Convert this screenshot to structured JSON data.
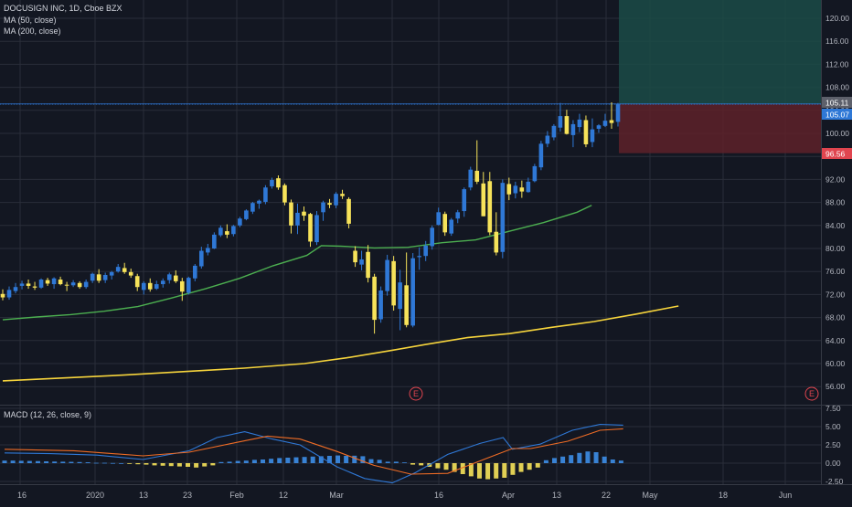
{
  "header": {
    "symbol_line": "DOCUSIGN INC, 1D, Cboe BZX",
    "ma50_label": "MA (50, close)",
    "ma200_label": "MA (200, close)",
    "macd_label": "MACD (12, 26, close, 9)"
  },
  "colors": {
    "background": "#131722",
    "grid": "#2a2e39",
    "bull": "#2f78d6",
    "bear": "#f7e35a",
    "ma50": "#4caf50",
    "ma200": "#f6d43c",
    "macd_line": "#2f78d6",
    "signal_line": "#ef6c25",
    "profit_zone": "#1b4b47",
    "loss_zone": "#5e2129",
    "price_line": "#2f78d6"
  },
  "chart_data": {
    "type": "candlestick",
    "price_axis": {
      "ticks": [
        "120.00",
        "116.00",
        "112.00",
        "108.00",
        "104.00",
        "100.00",
        "96.00",
        "92.00",
        "88.00",
        "84.00",
        "80.00",
        "76.00",
        "72.00",
        "68.00",
        "64.00",
        "60.00",
        "56.00"
      ]
    },
    "macd_axis": {
      "ticks": [
        "7.50",
        "5.00",
        "2.50",
        "0.00",
        "-2.50"
      ]
    },
    "x_axis": {
      "labels": [
        "16",
        "2020",
        "13",
        "23",
        "Feb",
        "12",
        "Mar",
        "16",
        "Apr",
        "13",
        "22",
        "May",
        "18",
        "Jun"
      ]
    },
    "price_labels": [
      {
        "text": "105.11",
        "kind": "gray"
      },
      {
        "text": "105.07",
        "kind": "blue"
      },
      {
        "text": "96.56",
        "kind": "red"
      }
    ],
    "position": {
      "entry": 105.11,
      "stop": 96.56,
      "target": 121
    },
    "earnings_markers": [
      "E",
      "E"
    ],
    "anchors": {
      "p100": 100,
      "y100": 146,
      "p60": 60,
      "y60": 398,
      "m5": 5,
      "my5": 467,
      "m0": 0,
      "my0": 507,
      "c0x": 3,
      "dx": 6.6
    },
    "candles_ohlc": [
      [
        72.1,
        72.9,
        71.0,
        71.5
      ],
      [
        71.5,
        73.4,
        71.1,
        72.8
      ],
      [
        72.6,
        74.0,
        72.2,
        73.3
      ],
      [
        73.5,
        74.4,
        72.9,
        73.9
      ],
      [
        73.9,
        74.6,
        73.0,
        73.5
      ],
      [
        73.4,
        74.2,
        72.8,
        73.2
      ],
      [
        73.2,
        74.8,
        73.0,
        74.6
      ],
      [
        74.5,
        74.9,
        73.5,
        73.9
      ],
      [
        73.8,
        75.0,
        73.0,
        74.8
      ],
      [
        74.6,
        75.1,
        73.6,
        73.8
      ],
      [
        73.7,
        74.2,
        72.6,
        73.6
      ],
      [
        73.6,
        74.5,
        73.3,
        74.1
      ],
      [
        74.0,
        74.3,
        73.0,
        73.3
      ],
      [
        73.3,
        74.6,
        73.0,
        74.2
      ],
      [
        74.4,
        75.8,
        74.0,
        75.6
      ],
      [
        75.5,
        76.4,
        74.0,
        74.4
      ],
      [
        74.5,
        75.8,
        74.0,
        75.4
      ],
      [
        75.3,
        76.1,
        74.6,
        75.9
      ],
      [
        76.0,
        77.3,
        75.8,
        76.8
      ],
      [
        76.6,
        77.5,
        75.6,
        75.9
      ],
      [
        75.9,
        76.5,
        74.9,
        75.3
      ],
      [
        75.2,
        75.6,
        72.6,
        73.3
      ],
      [
        72.8,
        74.3,
        72.0,
        74.0
      ],
      [
        74.0,
        74.8,
        72.5,
        72.9
      ],
      [
        73.0,
        74.4,
        72.8,
        73.8
      ],
      [
        73.8,
        74.8,
        73.2,
        74.4
      ],
      [
        74.5,
        75.8,
        73.9,
        75.5
      ],
      [
        75.3,
        76.2,
        74.0,
        74.3
      ],
      [
        74.3,
        74.9,
        70.9,
        72.5
      ],
      [
        72.3,
        75.1,
        72.0,
        74.9
      ],
      [
        74.8,
        77.3,
        74.3,
        77.0
      ],
      [
        76.9,
        80.3,
        76.5,
        79.6
      ],
      [
        79.3,
        80.8,
        78.8,
        80.1
      ],
      [
        80.0,
        82.8,
        79.9,
        82.4
      ],
      [
        82.3,
        84.0,
        82.0,
        83.6
      ],
      [
        83.0,
        84.2,
        81.8,
        82.4
      ],
      [
        82.5,
        84.1,
        82.1,
        83.9
      ],
      [
        84.0,
        85.5,
        83.7,
        85.2
      ],
      [
        85.1,
        86.8,
        84.9,
        86.6
      ],
      [
        86.4,
        88.1,
        86.0,
        87.9
      ],
      [
        87.8,
        88.5,
        86.9,
        88.3
      ],
      [
        88.1,
        91.0,
        87.7,
        90.6
      ],
      [
        90.8,
        92.3,
        90.4,
        91.9
      ],
      [
        92.2,
        92.7,
        90.2,
        90.6
      ],
      [
        91.0,
        91.3,
        87.5,
        88.0
      ],
      [
        88.0,
        88.5,
        82.6,
        84.0
      ],
      [
        84.0,
        87.8,
        82.5,
        86.2
      ],
      [
        86.4,
        87.3,
        84.8,
        85.7
      ],
      [
        86.0,
        86.2,
        80.3,
        81.2
      ],
      [
        81.1,
        86.5,
        80.6,
        85.8
      ],
      [
        86.3,
        88.3,
        84.8,
        88.0
      ],
      [
        87.9,
        88.6,
        87.0,
        87.6
      ],
      [
        87.5,
        89.8,
        87.0,
        89.5
      ],
      [
        89.5,
        90.2,
        88.6,
        89.1
      ],
      [
        88.6,
        88.9,
        83.5,
        84.3
      ],
      [
        79.6,
        80.4,
        76.8,
        77.6
      ],
      [
        77.2,
        79.6,
        76.2,
        78.1
      ],
      [
        79.4,
        80.6,
        74.1,
        74.9
      ],
      [
        75.1,
        75.6,
        65.2,
        67.6
      ],
      [
        67.7,
        73.4,
        67.1,
        72.7
      ],
      [
        72.6,
        78.9,
        71.8,
        78.0
      ],
      [
        77.8,
        78.7,
        69.2,
        70.1
      ],
      [
        69.5,
        76.3,
        65.8,
        74.1
      ],
      [
        73.6,
        79.3,
        66.3,
        66.7
      ],
      [
        66.6,
        79.2,
        66.3,
        78.3
      ],
      [
        78.5,
        80.2,
        76.3,
        78.7
      ],
      [
        78.7,
        81.3,
        77.8,
        80.5
      ],
      [
        80.4,
        84.0,
        79.8,
        83.6
      ],
      [
        84.1,
        87.1,
        84.0,
        86.3
      ],
      [
        86.0,
        86.4,
        82.2,
        82.8
      ],
      [
        82.6,
        85.3,
        82.2,
        85.0
      ],
      [
        85.2,
        86.7,
        84.4,
        86.3
      ],
      [
        86.5,
        90.6,
        85.5,
        90.3
      ],
      [
        90.6,
        94.2,
        90.1,
        93.7
      ],
      [
        93.5,
        98.8,
        91.2,
        91.6
      ],
      [
        91.3,
        93.3,
        85.6,
        85.6
      ],
      [
        91.7,
        93.3,
        82.3,
        82.8
      ],
      [
        82.9,
        86.3,
        78.8,
        79.3
      ],
      [
        79.4,
        92.0,
        78.3,
        91.4
      ],
      [
        91.2,
        92.3,
        88.4,
        89.4
      ],
      [
        89.6,
        91.6,
        88.7,
        90.9
      ],
      [
        90.6,
        91.8,
        88.8,
        89.9
      ],
      [
        89.8,
        92.3,
        89.7,
        91.6
      ],
      [
        91.7,
        94.7,
        91.5,
        94.3
      ],
      [
        94.1,
        98.7,
        93.6,
        98.2
      ],
      [
        98.2,
        100.4,
        97.6,
        99.6
      ],
      [
        99.3,
        101.6,
        98.8,
        101.3
      ],
      [
        101.0,
        105.3,
        100.3,
        103.0
      ],
      [
        103.0,
        104.1,
        99.8,
        99.9
      ],
      [
        99.7,
        102.3,
        97.6,
        101.6
      ],
      [
        101.1,
        103.4,
        100.2,
        102.4
      ],
      [
        102.3,
        103.1,
        97.6,
        98.1
      ],
      [
        98.5,
        102.6,
        97.6,
        100.7
      ],
      [
        100.8,
        101.6,
        100.1,
        101.4
      ],
      [
        101.3,
        103.4,
        101.1,
        102.2
      ],
      [
        102.3,
        105.4,
        100.8,
        101.8
      ],
      [
        102.0,
        105.3,
        101.2,
        105.07
      ]
    ],
    "ma50": [
      [
        0,
        67.6
      ],
      [
        7,
        68.1
      ],
      [
        14,
        68.5
      ],
      [
        21,
        69.1
      ],
      [
        28,
        69.9
      ],
      [
        35,
        71.4
      ],
      [
        42,
        73.0
      ],
      [
        49,
        74.8
      ],
      [
        56,
        77.0
      ],
      [
        63,
        78.8
      ],
      [
        66,
        80.5
      ],
      [
        70,
        80.4
      ],
      [
        77,
        80.1
      ],
      [
        84,
        80.2
      ],
      [
        91,
        81.0
      ],
      [
        98,
        81.5
      ],
      [
        105,
        83.0
      ],
      [
        112,
        84.5
      ],
      [
        119,
        86.3
      ],
      [
        122,
        87.5
      ]
    ],
    "ma200": [
      [
        0,
        57.0
      ],
      [
        20,
        58.0
      ],
      [
        40,
        59.2
      ],
      [
        50,
        60.0
      ],
      [
        57,
        61.0
      ],
      [
        64,
        62.2
      ],
      [
        70,
        63.3
      ],
      [
        77,
        64.5
      ],
      [
        84,
        65.2
      ],
      [
        91,
        66.3
      ],
      [
        98,
        67.3
      ],
      [
        105,
        68.6
      ],
      [
        112,
        70.0
      ]
    ],
    "macd": {
      "histogram": [
        0.35,
        0.35,
        0.32,
        0.3,
        0.28,
        0.25,
        0.22,
        0.2,
        0.18,
        0.15,
        0.12,
        0.05,
        0.05,
        0.02,
        0,
        -0.1,
        -0.15,
        -0.2,
        -0.3,
        -0.35,
        -0.4,
        -0.45,
        -0.5,
        -0.6,
        -0.45,
        -0.3,
        0.15,
        0.2,
        0.3,
        0.35,
        0.45,
        0.5,
        0.6,
        0.7,
        0.75,
        0.8,
        0.85,
        0.9,
        0.95,
        1.0,
        1.05,
        1.0,
        1.02,
        0.95,
        0.55,
        0.45,
        0.2,
        0.2,
        0.1,
        -0.2,
        -0.3,
        -0.5,
        -0.7,
        -0.9,
        -1.2,
        -1.5,
        -1.8,
        -2.1,
        -2.2,
        -2.1,
        -2.0,
        -1.6,
        -1.2,
        -0.9,
        -0.6,
        0.4,
        0.7,
        0.9,
        1.1,
        1.4,
        1.6,
        1.5,
        0.9,
        0.5,
        0.35,
        0.55,
        0.6,
        0.65,
        0.7,
        0.9,
        1.1,
        1.25,
        1.4,
        1.6,
        1.65,
        1.6,
        1.55,
        1.5,
        1.45,
        1.2
      ],
      "macd_line": [
        [
          0,
          1.4
        ],
        [
          10,
          1.3
        ],
        [
          20,
          1.1
        ],
        [
          30,
          0.5
        ],
        [
          40,
          1.7
        ],
        [
          46,
          3.5
        ],
        [
          52,
          4.3
        ],
        [
          58,
          3.3
        ],
        [
          64,
          2.5
        ],
        [
          72,
          -0.5
        ],
        [
          78,
          -2.1
        ],
        [
          84,
          -2.7
        ],
        [
          89,
          -1.3
        ],
        [
          96,
          1.2
        ],
        [
          103,
          2.7
        ],
        [
          108,
          3.5
        ],
        [
          110,
          1.9
        ],
        [
          116,
          2.6
        ],
        [
          123,
          4.5
        ],
        [
          129,
          5.3
        ],
        [
          134,
          5.2
        ]
      ],
      "signal_line": [
        [
          0,
          1.9
        ],
        [
          15,
          1.7
        ],
        [
          30,
          1.0
        ],
        [
          40,
          1.5
        ],
        [
          50,
          2.8
        ],
        [
          57,
          3.7
        ],
        [
          64,
          3.3
        ],
        [
          72,
          1.6
        ],
        [
          80,
          -0.3
        ],
        [
          88,
          -1.5
        ],
        [
          96,
          -1.4
        ],
        [
          105,
          0.8
        ],
        [
          110,
          2.0
        ],
        [
          114,
          2.0
        ],
        [
          122,
          3.0
        ],
        [
          129,
          4.5
        ],
        [
          134,
          4.7
        ]
      ]
    }
  }
}
